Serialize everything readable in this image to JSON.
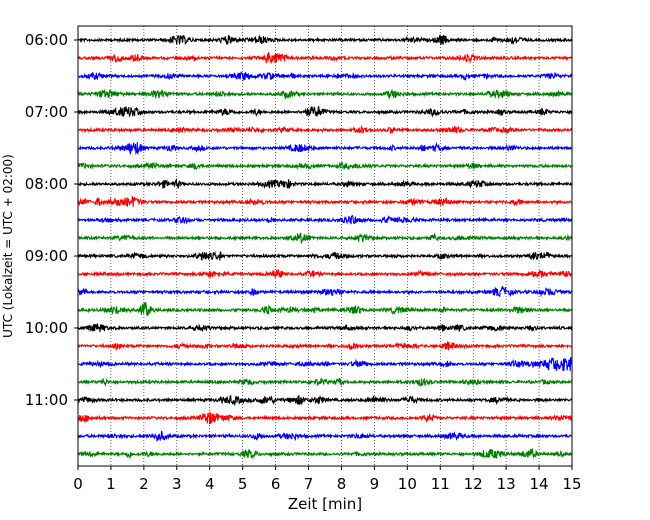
{
  "chart_data": {
    "type": "line",
    "title": "",
    "xlabel": "Zeit  [min]",
    "ylabel": "UTC (Lokalzeit = UTC + 02:00)",
    "xlim": [
      0,
      15
    ],
    "x_ticks": [
      "0",
      "1",
      "2",
      "3",
      "4",
      "5",
      "6",
      "7",
      "8",
      "9",
      "10",
      "11",
      "12",
      "13",
      "14",
      "15"
    ],
    "y_ticks": [
      "06:00",
      "07:00",
      "08:00",
      "09:00",
      "10:00",
      "11:00"
    ],
    "grid": "vertical dotted",
    "legend": "none",
    "trace_interval_minutes": 15,
    "trace_colors": [
      "#000000",
      "#ff0000",
      "#0000ff",
      "#007f00"
    ],
    "series": [
      {
        "start": "06:00"
      },
      {
        "start": "06:15"
      },
      {
        "start": "06:30"
      },
      {
        "start": "06:45"
      },
      {
        "start": "07:00"
      },
      {
        "start": "07:15"
      },
      {
        "start": "07:30"
      },
      {
        "start": "07:45"
      },
      {
        "start": "08:00"
      },
      {
        "start": "08:15"
      },
      {
        "start": "08:30"
      },
      {
        "start": "08:45"
      },
      {
        "start": "09:00"
      },
      {
        "start": "09:15"
      },
      {
        "start": "09:30"
      },
      {
        "start": "09:45"
      },
      {
        "start": "10:00"
      },
      {
        "start": "10:15"
      },
      {
        "start": "10:30",
        "event_at_min": 14.5
      },
      {
        "start": "10:45"
      },
      {
        "start": "11:00"
      },
      {
        "start": "11:15"
      },
      {
        "start": "11:30"
      },
      {
        "start": "11:45"
      }
    ]
  }
}
